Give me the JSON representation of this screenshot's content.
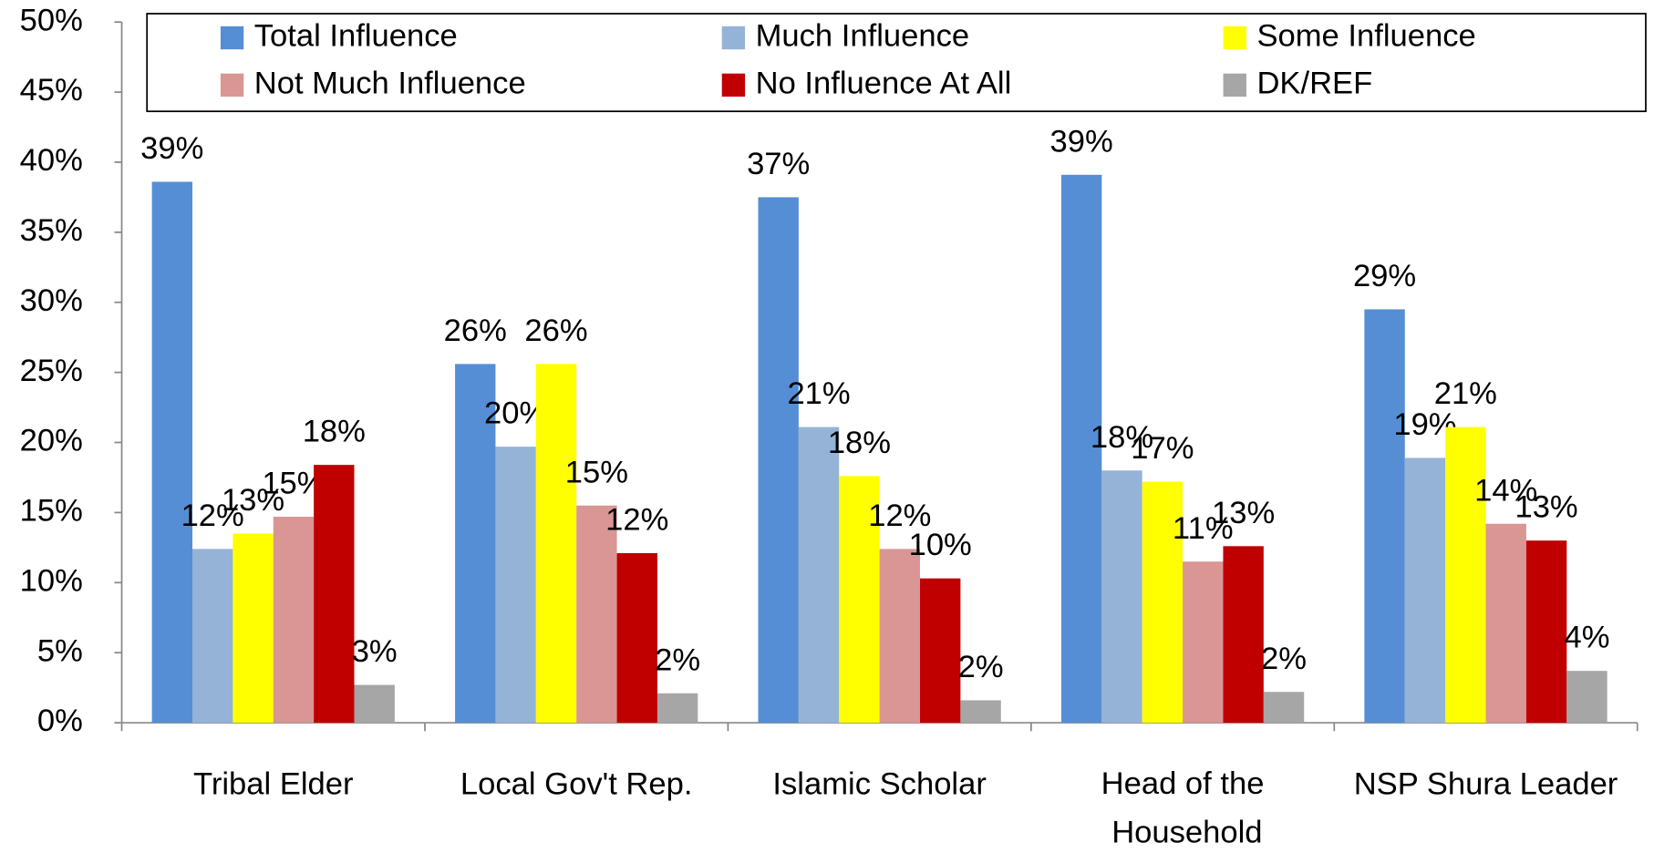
{
  "chart_data": {
    "type": "bar",
    "categories": [
      "Tribal Elder",
      "Local Gov't Rep.",
      "Islamic Scholar",
      "Head of the Household",
      "NSP Shura Leader"
    ],
    "series": [
      {
        "name": "Total Influence",
        "color": "#558ed5",
        "values": [
          38.6,
          25.6,
          37.5,
          39.1,
          29.5
        ],
        "value_labels": [
          "39%",
          "26%",
          "37%",
          "39%",
          "29%"
        ]
      },
      {
        "name": "Much Influence",
        "color": "#95b3d7",
        "values": [
          12.4,
          19.7,
          21.1,
          18.0,
          18.9
        ],
        "value_labels": [
          "12%",
          "20%",
          "21%",
          "18%",
          "19%"
        ]
      },
      {
        "name": "Some Influence",
        "color": "#ffff00",
        "values": [
          13.5,
          25.6,
          17.6,
          17.2,
          21.1
        ],
        "value_labels": [
          "13%",
          "26%",
          "18%",
          "17%",
          "21%"
        ]
      },
      {
        "name": "Not Much Influence",
        "color": "#d99694",
        "values": [
          14.7,
          15.5,
          12.4,
          11.5,
          14.2
        ],
        "value_labels": [
          "15%",
          "15%",
          "12%",
          "11%",
          "14%"
        ]
      },
      {
        "name": "No Influence At All",
        "color": "#c00000",
        "values": [
          18.4,
          12.1,
          10.3,
          12.6,
          13.0
        ],
        "value_labels": [
          "18%",
          "12%",
          "10%",
          "13%",
          "13%"
        ]
      },
      {
        "name": "DK/REF",
        "color": "#a6a6a6",
        "values": [
          2.7,
          2.1,
          1.6,
          2.2,
          3.7
        ],
        "value_labels": [
          "3%",
          "2%",
          "2%",
          "2%",
          "4%"
        ]
      }
    ],
    "ylim": [
      0,
      50
    ],
    "yticks": [
      {
        "value": 0,
        "label": "0%"
      },
      {
        "value": 5,
        "label": "5%"
      },
      {
        "value": 10,
        "label": "10%"
      },
      {
        "value": 15,
        "label": "15%"
      },
      {
        "value": 20,
        "label": "20%"
      },
      {
        "value": 25,
        "label": "25%"
      },
      {
        "value": 30,
        "label": "30%"
      },
      {
        "value": 35,
        "label": "35%"
      },
      {
        "value": 40,
        "label": "40%"
      },
      {
        "value": 45,
        "label": "45%"
      },
      {
        "value": 50,
        "label": "50%"
      }
    ],
    "grid": false,
    "legend": "top"
  }
}
